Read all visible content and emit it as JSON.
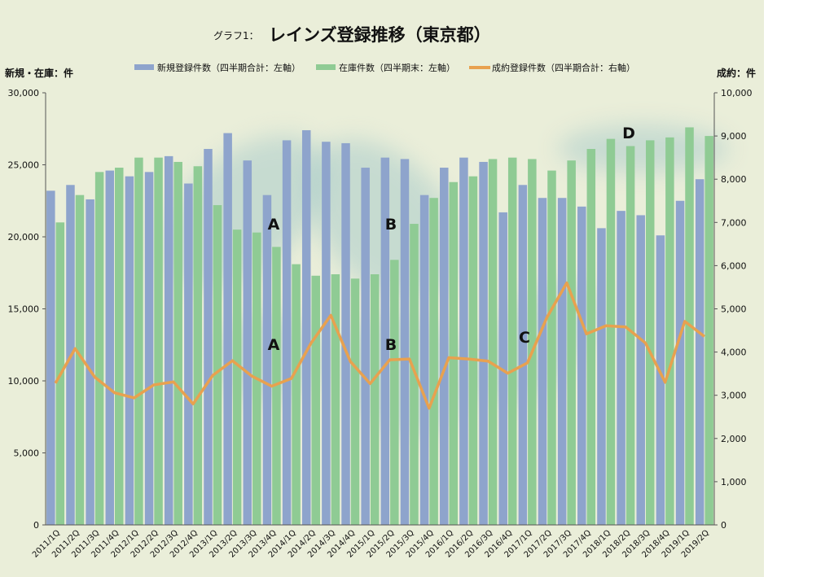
{
  "chart_data": {
    "type": "bar",
    "title_prefix": "グラフ1：",
    "title": "レインズ登録推移（東京都）",
    "ylabel_left": "新規・在庫：件",
    "ylabel_right": "成約：件",
    "ylim_left": [
      0,
      30000
    ],
    "ylim_right": [
      0,
      10000
    ],
    "yticks_left": [
      "0",
      "5,000",
      "10,000",
      "15,000",
      "20,000",
      "25,000",
      "30,000"
    ],
    "yticks_right": [
      "0",
      "1,000",
      "2,000",
      "3,000",
      "4,000",
      "5,000",
      "6,000",
      "7,000",
      "8,000",
      "9,000",
      "10,000"
    ],
    "grid": false,
    "legend_position": "top",
    "categories": [
      "2011/1Q",
      "2011/2Q",
      "2011/3Q",
      "2011/4Q",
      "2012/1Q",
      "2012/2Q",
      "2012/3Q",
      "2012/4Q",
      "2013/1Q",
      "2013/2Q",
      "2013/3Q",
      "2013/4Q",
      "2014/1Q",
      "2014/2Q",
      "2014/3Q",
      "2014/4Q",
      "2015/1Q",
      "2015/2Q",
      "2015/3Q",
      "2015/4Q",
      "2016/1Q",
      "2016/2Q",
      "2016/3Q",
      "2016/4Q",
      "2017/1Q",
      "2017/2Q",
      "2017/3Q",
      "2017/4Q",
      "2018/1Q",
      "2018/2Q",
      "2018/3Q",
      "2018/4Q",
      "2019/1Q",
      "2019/2Q"
    ],
    "series": [
      {
        "name": "新規登録件数（四半期合計：左軸）",
        "type": "bar",
        "axis": "left",
        "color": "#8ea4cc",
        "values": [
          23200,
          23600,
          22600,
          24600,
          24200,
          24500,
          25600,
          23700,
          26100,
          27200,
          25300,
          22900,
          26700,
          27400,
          26600,
          26500,
          24800,
          25500,
          25400,
          22900,
          24800,
          25500,
          25200,
          21700,
          23600,
          22700,
          22700,
          22100,
          20600,
          21800,
          21500,
          20100,
          22500,
          24000
        ]
      },
      {
        "name": "在庫件数（四半期末：左軸）",
        "type": "bar",
        "axis": "left",
        "color": "#8fcb94",
        "values": [
          21000,
          22900,
          24500,
          24800,
          25500,
          25500,
          25200,
          24900,
          22200,
          20500,
          20300,
          19300,
          18100,
          17300,
          17400,
          17100,
          17400,
          18400,
          20900,
          22700,
          23800,
          24200,
          25400,
          25500,
          25400,
          24600,
          25300,
          26100,
          26800,
          26300,
          26700,
          26900,
          27600,
          27000
        ]
      },
      {
        "name": "成約登録件数（四半期合計：右軸）",
        "type": "line",
        "axis": "right",
        "color": "#e8a14f",
        "values": [
          3280,
          4080,
          3420,
          3060,
          2940,
          3240,
          3310,
          2800,
          3460,
          3800,
          3440,
          3210,
          3390,
          4210,
          4850,
          3780,
          3270,
          3820,
          3840,
          2700,
          3870,
          3840,
          3790,
          3510,
          3750,
          4810,
          5600,
          4420,
          4610,
          4580,
          4210,
          3300,
          4710,
          4360
        ]
      }
    ],
    "annotations": [
      "A",
      "B",
      "A",
      "B",
      "C",
      "D"
    ]
  }
}
